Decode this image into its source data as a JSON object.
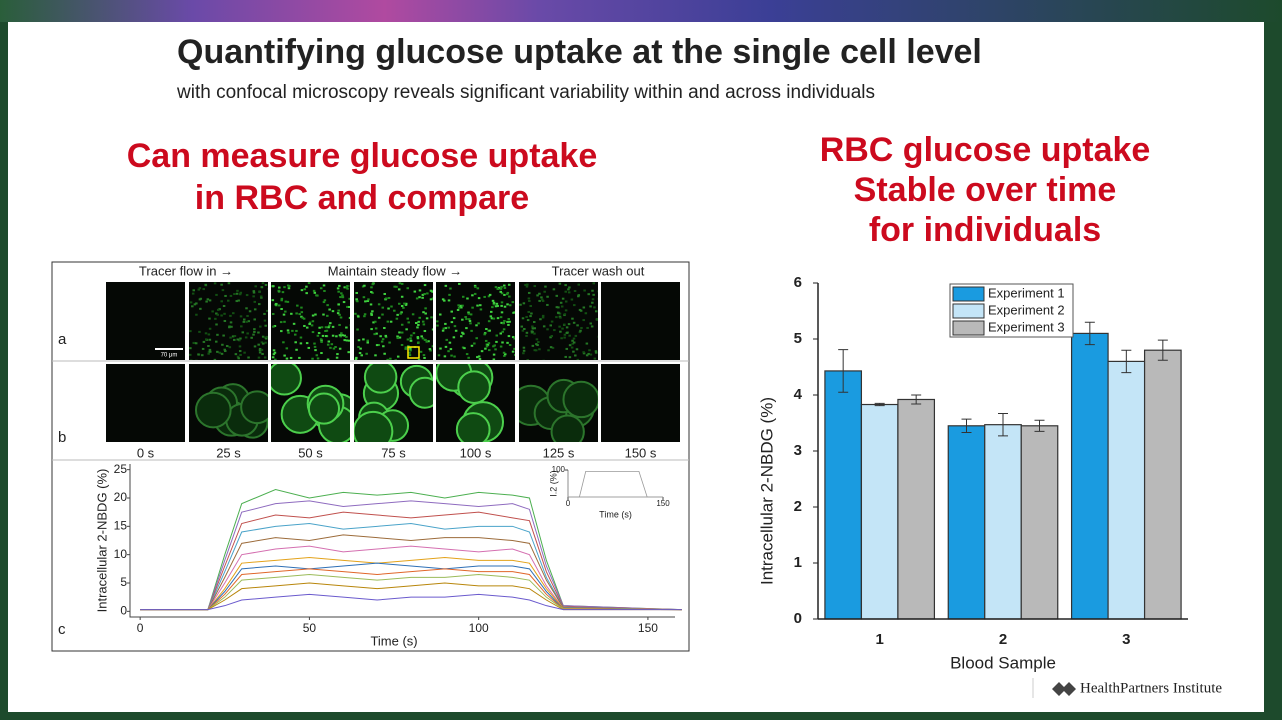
{
  "header": {
    "title": "Quantifying glucose uptake at the single cell level",
    "subtitle": "with confocal microscopy reveals significant variability within and across individuals"
  },
  "left": {
    "heading": [
      "Can measure glucose uptake",
      "in RBC and compare"
    ]
  },
  "right": {
    "heading": [
      "RBC glucose uptake",
      "Stable over time",
      "for individuals"
    ]
  },
  "figure": {
    "column_labels": [
      "Tracer flow in →",
      "Maintain steady flow →",
      "Tracer wash out"
    ],
    "row_labels": [
      "a",
      "b",
      "c"
    ],
    "scale_bar": "70 μm",
    "time_labels": [
      "0 s",
      "25 s",
      "50 s",
      "75 s",
      "100 s",
      "125 s",
      "150 s"
    ]
  },
  "footer": {
    "logo": "HealthPartners Institute"
  },
  "chart_data": [
    {
      "type": "bar",
      "categories": [
        "1",
        "2",
        "3"
      ],
      "series": [
        {
          "name": "Experiment 1",
          "color": "#1a9be0",
          "values": [
            4.43,
            3.45,
            5.1
          ],
          "errors": [
            0.38,
            0.12,
            0.2
          ]
        },
        {
          "name": "Experiment 2",
          "color": "#c4e5f7",
          "values": [
            3.83,
            3.47,
            4.6
          ],
          "errors": [
            0.02,
            0.2,
            0.2
          ]
        },
        {
          "name": "Experiment 3",
          "color": "#b9b9b9",
          "values": [
            3.92,
            3.45,
            4.8
          ],
          "errors": [
            0.08,
            0.1,
            0.18
          ]
        }
      ],
      "ylim": [
        0,
        6
      ],
      "yticks": [
        0,
        1,
        2,
        3,
        4,
        5,
        6
      ],
      "xlabel": "Blood Sample",
      "ylabel": "Intracellular 2-NBDG (%)",
      "legend": "top"
    },
    {
      "type": "line",
      "x": [
        0,
        20,
        25,
        30,
        40,
        50,
        60,
        70,
        80,
        90,
        100,
        110,
        115,
        120,
        125,
        160
      ],
      "series": [
        {
          "color": "#4caf50",
          "values": [
            0.3,
            0.3,
            10,
            19,
            21.5,
            20,
            21,
            20.5,
            21,
            20,
            21,
            20.5,
            20,
            9,
            1,
            0.3
          ]
        },
        {
          "color": "#8e6bbf",
          "values": [
            0.3,
            0.3,
            9,
            17.5,
            19,
            19.5,
            18.5,
            19,
            19.5,
            19,
            18.5,
            19,
            18,
            8,
            1,
            0.3
          ]
        },
        {
          "color": "#c0504d",
          "values": [
            0.3,
            0.3,
            8,
            15.5,
            17,
            16.5,
            17.5,
            17,
            16.5,
            17,
            17.5,
            16.5,
            16,
            7,
            0.8,
            0.3
          ]
        },
        {
          "color": "#4aa3c9",
          "values": [
            0.3,
            0.3,
            7,
            14,
            15,
            15.5,
            14.5,
            15,
            15.5,
            14.5,
            15,
            15,
            14,
            6,
            0.7,
            0.3
          ]
        },
        {
          "color": "#9c6b3a",
          "values": [
            0.3,
            0.3,
            6,
            12,
            13,
            12.5,
            13.5,
            13,
            12.5,
            13,
            13,
            12.5,
            12,
            5.5,
            0.6,
            0.3
          ]
        },
        {
          "color": "#d46fb0",
          "values": [
            0.3,
            0.3,
            5,
            10,
            11,
            11.5,
            10.5,
            11,
            11.5,
            11,
            10.5,
            11,
            10,
            4.5,
            0.5,
            0.3
          ]
        },
        {
          "color": "#e3a21a",
          "values": [
            0.3,
            0.3,
            4,
            8.5,
            9,
            9.5,
            9,
            8.5,
            9,
            9.5,
            9,
            9,
            8.5,
            4,
            0.5,
            0.3
          ]
        },
        {
          "color": "#2e6fb5",
          "values": [
            0.3,
            0.3,
            3.5,
            7.5,
            8,
            7.5,
            8,
            8.5,
            8,
            7.5,
            8,
            8,
            7.5,
            3.5,
            0.4,
            0.3
          ]
        },
        {
          "color": "#e0662a",
          "values": [
            0.3,
            0.3,
            3,
            6.5,
            7,
            7.5,
            7,
            6.5,
            7,
            7.5,
            7,
            7,
            6.5,
            3,
            0.4,
            0.3
          ]
        },
        {
          "color": "#9bbb59",
          "values": [
            0.3,
            0.3,
            2.5,
            5.5,
            6,
            6.5,
            6,
            5.5,
            6,
            6,
            6.5,
            6,
            5.5,
            2.5,
            0.4,
            0.3
          ]
        },
        {
          "color": "#b8860b",
          "values": [
            0.3,
            0.3,
            2,
            4,
            4.5,
            5,
            4.5,
            4,
            4.5,
            5,
            4.5,
            4.5,
            4,
            2,
            0.3,
            0.3
          ]
        },
        {
          "color": "#6a5acd",
          "values": [
            0.3,
            0.3,
            1,
            2,
            2.5,
            3,
            2.5,
            2,
            2.5,
            2.5,
            3,
            2.5,
            2,
            1,
            0.3,
            0.3
          ]
        }
      ],
      "xlim": [
        -3,
        158
      ],
      "ylim": [
        -1,
        26
      ],
      "xticks": [
        0,
        50,
        100,
        150
      ],
      "yticks": [
        0,
        5,
        10,
        15,
        20,
        25
      ],
      "xlabel": "Time (s)",
      "ylabel": "Intracellular 2-NBDG (%)"
    },
    {
      "type": "line",
      "x": [
        0,
        18,
        28,
        112,
        125,
        150
      ],
      "series": [
        {
          "color": "#999999",
          "values": [
            0,
            0,
            95,
            95,
            0,
            0
          ]
        }
      ],
      "xlim": [
        0,
        150
      ],
      "ylim": [
        0,
        100
      ],
      "xticks": [
        0,
        150
      ],
      "yticks": [
        100
      ],
      "xlabel": "Time (s)",
      "ylabel": "I.2 (%)"
    }
  ]
}
